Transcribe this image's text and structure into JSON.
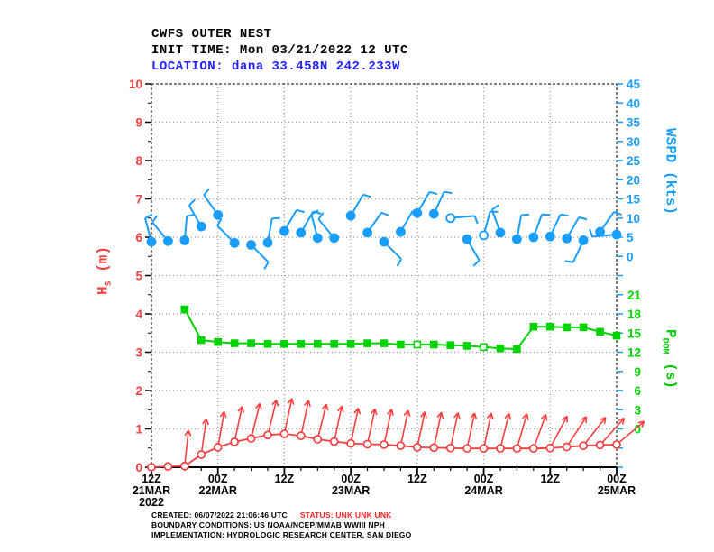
{
  "header": {
    "title": "CWFS OUTER NEST",
    "init_line": "INIT TIME: Mon 03/21/2022 12 UTC",
    "location_line": "LOCATION: dana 33.458N 242.233W"
  },
  "footer": {
    "created": "CREATED: 06/07/2022 21:06:46 UTC",
    "status": "STATUS: UNK UNK UNK",
    "boundary": "BOUNDARY CONDITIONS: US NOAA/NCEP/MMAB WWIII NPH",
    "implementation": "IMPLEMENTATION: HYDROLOGIC RESEARCH CENTER, SAN DIEGO"
  },
  "colors": {
    "hs_red": "#f94040",
    "wspd_blue": "#199eff",
    "pdom_green": "#00d400",
    "location_blue": "#2222ff",
    "grid_gray": "#999999",
    "frame_black": "#000000",
    "status_red": "#ff2020"
  },
  "chart_data": {
    "type": "line",
    "title": "CWFS OUTER NEST",
    "grid": "dotted",
    "x_axis": {
      "range_hours": [
        0,
        84
      ],
      "major_step_hours": 12,
      "minor_step_hours": 3,
      "ticks": [
        {
          "hour": 0,
          "time": "12Z",
          "date": "21MAR",
          "year": "2022"
        },
        {
          "hour": 12,
          "time": "00Z",
          "date": "22MAR",
          "year": ""
        },
        {
          "hour": 24,
          "time": "12Z",
          "date": "",
          "year": ""
        },
        {
          "hour": 36,
          "time": "00Z",
          "date": "23MAR",
          "year": ""
        },
        {
          "hour": 48,
          "time": "12Z",
          "date": "",
          "year": ""
        },
        {
          "hour": 60,
          "time": "00Z",
          "date": "24MAR",
          "year": ""
        },
        {
          "hour": 72,
          "time": "12Z",
          "date": "",
          "year": ""
        },
        {
          "hour": 84,
          "time": "00Z",
          "date": "25MAR",
          "year": ""
        }
      ]
    },
    "left_axis": {
      "label_main": "H",
      "label_sub": "s",
      "label_unit": " (m)",
      "min": 0,
      "max": 10,
      "step": 1,
      "ticks": [
        0,
        1,
        2,
        3,
        4,
        5,
        6,
        7,
        8,
        9,
        10
      ],
      "color": "#f94040"
    },
    "right_axis_top": {
      "label_main": "WSPD",
      "label_sub": "",
      "label_unit": " (kts)",
      "min": 0,
      "max": 45,
      "step": 5,
      "ticks": [
        0,
        5,
        10,
        15,
        20,
        25,
        30,
        35,
        40,
        45
      ],
      "maps_to_hs": [
        5.5,
        10
      ],
      "color": "#199eff"
    },
    "right_axis_bottom": {
      "label_main": "P",
      "label_sub": "DOM",
      "label_unit": " (s)",
      "min": 0,
      "max": 21,
      "step": 3,
      "ticks": [
        0,
        3,
        6,
        9,
        12,
        15,
        18,
        21
      ],
      "maps_to_hs": [
        1,
        4.5
      ],
      "color": "#00d400"
    },
    "series": [
      {
        "name": "Hs",
        "unit": "m",
        "style": "line-open-circles-direction-arrows",
        "color": "#f94040",
        "hours": [
          0,
          3,
          6,
          9,
          12,
          15,
          18,
          21,
          24,
          27,
          30,
          33,
          36,
          39,
          42,
          45,
          48,
          51,
          54,
          57,
          60,
          63,
          66,
          69,
          72,
          75,
          78,
          81,
          84
        ],
        "values": [
          0.0,
          0.02,
          0.03,
          0.33,
          0.52,
          0.66,
          0.75,
          0.84,
          0.87,
          0.82,
          0.73,
          0.67,
          0.62,
          0.6,
          0.59,
          0.56,
          0.52,
          0.51,
          0.5,
          0.49,
          0.49,
          0.49,
          0.49,
          0.49,
          0.5,
          0.53,
          0.56,
          0.58,
          0.59
        ],
        "arrow_dirs_deg_cw_from_up": [
          null,
          null,
          6,
          8,
          10,
          12,
          14,
          14,
          12,
          12,
          14,
          12,
          12,
          12,
          12,
          12,
          12,
          12,
          12,
          12,
          12,
          14,
          16,
          20,
          28,
          33,
          38,
          42,
          50
        ]
      },
      {
        "name": "WSPD",
        "unit": "kts",
        "style": "wind-barbs",
        "color": "#199eff",
        "hours": [
          0,
          3,
          6,
          9,
          12,
          15,
          18,
          21,
          24,
          27,
          30,
          33,
          36,
          39,
          42,
          45,
          48,
          51,
          54,
          57,
          60,
          63,
          66,
          69,
          72,
          75,
          78,
          81,
          84
        ],
        "values": [
          3.8,
          4.0,
          4.2,
          7.8,
          10.8,
          3.5,
          3.0,
          3.6,
          6.6,
          6.2,
          4.8,
          4.8,
          10.6,
          6.2,
          3.8,
          6.4,
          11.3,
          11.1,
          10.0,
          4.5,
          5.5,
          6.2,
          4.5,
          5.0,
          5.2,
          4.7,
          4.2,
          6.4,
          5.7
        ],
        "barb_dirs_deg_cw_from_up": [
          345,
          320,
          5,
          330,
          325,
          315,
          135,
          10,
          30,
          30,
          345,
          320,
          30,
          35,
          135,
          30,
          30,
          25,
          85,
          150,
          15,
          340,
          10,
          20,
          25,
          30,
          205,
          35,
          265
        ],
        "open_marker_indices": [
          18,
          20
        ]
      },
      {
        "name": "PDOM",
        "unit": "s",
        "style": "line-squares",
        "color": "#00d400",
        "hours": [
          6,
          9,
          12,
          15,
          18,
          21,
          24,
          27,
          30,
          33,
          36,
          39,
          42,
          45,
          48,
          51,
          54,
          57,
          60,
          63,
          66,
          69,
          72,
          75,
          78,
          81,
          84
        ],
        "values": [
          18.7,
          13.9,
          13.6,
          13.4,
          13.4,
          13.3,
          13.3,
          13.3,
          13.3,
          13.3,
          13.3,
          13.4,
          13.4,
          13.2,
          13.2,
          13.2,
          13.1,
          13.0,
          12.8,
          12.6,
          12.5,
          16.0,
          16.0,
          15.9,
          15.9,
          15.2,
          14.6
        ],
        "open_marker_indices": [
          14,
          18
        ]
      }
    ]
  }
}
